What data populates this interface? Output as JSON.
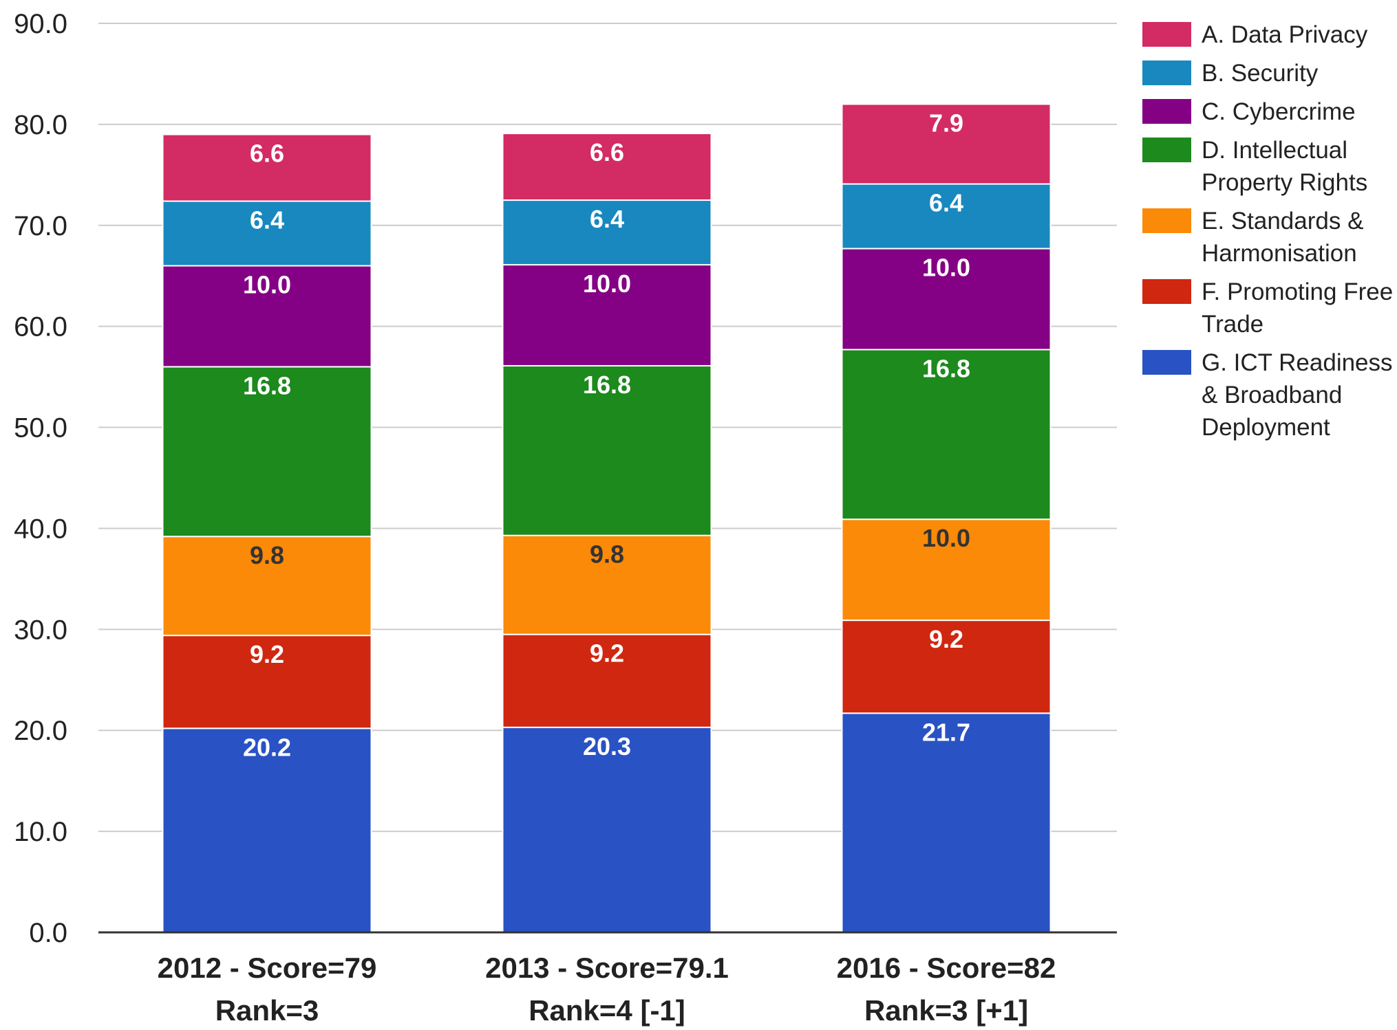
{
  "chart_data": {
    "type": "bar",
    "stacked": true,
    "categories": [
      [
        "2012 - Score=79",
        "Rank=3"
      ],
      [
        "2013 - Score=79.1",
        "Rank=4 [-1]"
      ],
      [
        "2016 - Score=82",
        "Rank=3 [+1]"
      ]
    ],
    "series": [
      {
        "name": "G. ICT Readiness & Broadband Deployment",
        "legend_lines": [
          "G. ICT Readiness",
          "& Broadband",
          "Deployment"
        ],
        "color": "#2952c4",
        "label_color": "#ffffff",
        "values": [
          20.2,
          20.3,
          21.7
        ]
      },
      {
        "name": "F. Promoting Free Trade",
        "legend_lines": [
          "F. Promoting Free",
          "Trade"
        ],
        "color": "#d02710",
        "label_color": "#ffffff",
        "values": [
          9.2,
          9.2,
          9.2
        ]
      },
      {
        "name": "E. Standards & Harmonisation",
        "legend_lines": [
          "E. Standards &",
          "Harmonisation"
        ],
        "color": "#fb8a08",
        "label_color": "#333333",
        "values": [
          9.8,
          9.8,
          10.0
        ]
      },
      {
        "name": "D. Intellectual Property Rights",
        "legend_lines": [
          "D. Intellectual",
          "Property Rights"
        ],
        "color": "#1c8a1c",
        "label_color": "#ffffff",
        "values": [
          16.8,
          16.8,
          16.8
        ]
      },
      {
        "name": "C. Cybercrime",
        "legend_lines": [
          "C. Cybercrime"
        ],
        "color": "#840084",
        "label_color": "#ffffff",
        "values": [
          10.0,
          10.0,
          10.0
        ]
      },
      {
        "name": "B. Security",
        "legend_lines": [
          "B. Security"
        ],
        "color": "#1888bf",
        "label_color": "#ffffff",
        "values": [
          6.4,
          6.4,
          6.4
        ]
      },
      {
        "name": "A. Data Privacy",
        "legend_lines": [
          "A. Data Privacy"
        ],
        "color": "#d32b63",
        "label_color": "#ffffff",
        "values": [
          6.6,
          6.6,
          7.9
        ]
      }
    ],
    "legend_order": [
      "A. Data Privacy",
      "B. Security",
      "C. Cybercrime",
      "D. Intellectual Property Rights",
      "E. Standards & Harmonisation",
      "F. Promoting Free Trade",
      "G. ICT Readiness & Broadband Deployment"
    ],
    "yticks": [
      "0.0",
      "10.0",
      "20.0",
      "30.0",
      "40.0",
      "50.0",
      "60.0",
      "70.0",
      "80.0",
      "90.0"
    ],
    "ylim": [
      0,
      90
    ],
    "title": "",
    "xlabel": "",
    "ylabel": "",
    "grid": true,
    "legend_position": "right"
  }
}
